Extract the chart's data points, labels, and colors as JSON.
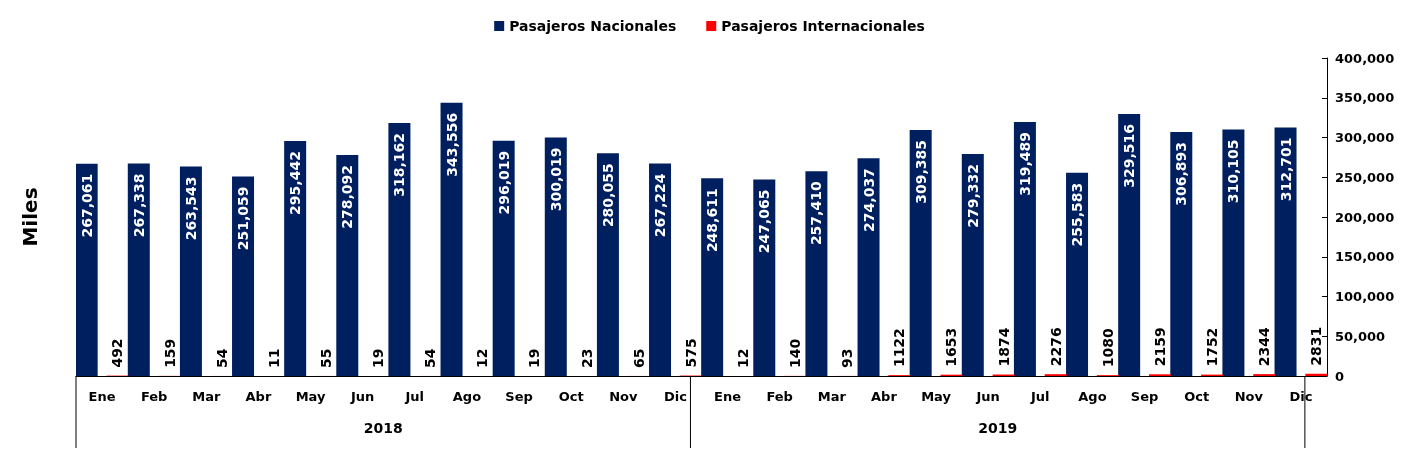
{
  "chart_data": {
    "type": "bar",
    "ylabel": "Miles",
    "categories": [
      "Ene",
      "Feb",
      "Mar",
      "Abr",
      "May",
      "Jun",
      "Jul",
      "Ago",
      "Sep",
      "Oct",
      "Nov",
      "Dic",
      "Ene",
      "Feb",
      "Mar",
      "Abr",
      "May",
      "Jun",
      "Jul",
      "Ago",
      "Sep",
      "Oct",
      "Nov",
      "Dic"
    ],
    "series": [
      {
        "name": "Pasajeros Nacionales",
        "color": "#001f5f",
        "values": [
          267061,
          267338,
          263543,
          251059,
          295442,
          278092,
          318162,
          343556,
          296019,
          300019,
          280055,
          267224,
          248611,
          247065,
          257410,
          274037,
          309385,
          279332,
          319489,
          255583,
          329516,
          306893,
          310105,
          312701
        ],
        "value_labels": [
          "267,061",
          "267,338",
          "263,543",
          "251,059",
          "295,442",
          "278,092",
          "318,162",
          "343,556",
          "296,019",
          "300,019",
          "280,055",
          "267,224",
          "248,611",
          "247,065",
          "257,410",
          "274,037",
          "309,385",
          "279,332",
          "319,489",
          "255,583",
          "329,516",
          "306,893",
          "310,105",
          "312,701"
        ]
      },
      {
        "name": "Pasajeros Internacionales",
        "color": "#ff0000",
        "values": [
          492,
          159,
          54,
          11,
          55,
          19,
          54,
          12,
          19,
          23,
          65,
          575,
          12,
          140,
          93,
          1122,
          1653,
          1874,
          2276,
          1080,
          2159,
          1752,
          2344,
          2831
        ],
        "value_labels": [
          "492",
          "159",
          "54",
          "11",
          "55",
          "19",
          "54",
          "12",
          "19",
          "23",
          "65",
          "575",
          "12",
          "140",
          "93",
          "1122",
          "1653",
          "1874",
          "2276",
          "1080",
          "2159",
          "1752",
          "2344",
          "2831"
        ]
      }
    ],
    "annotations": [
      "2018",
      "2019"
    ],
    "ylim": [
      0,
      400000
    ],
    "yticks": [
      0,
      {
        "value": 50000,
        "label": "50,000"
      },
      {
        "value": 100000,
        "label": "100,000"
      },
      {
        "value": 150000,
        "label": "150,000"
      },
      {
        "value": 200000,
        "label": "200,000"
      },
      {
        "value": 250000,
        "label": "250,000"
      },
      {
        "value": 300000,
        "label": "300,000"
      },
      {
        "value": 350000,
        "label": "350,000"
      },
      {
        "value": 400000,
        "label": "400,000"
      }
    ],
    "grid": false,
    "legend": "top"
  }
}
